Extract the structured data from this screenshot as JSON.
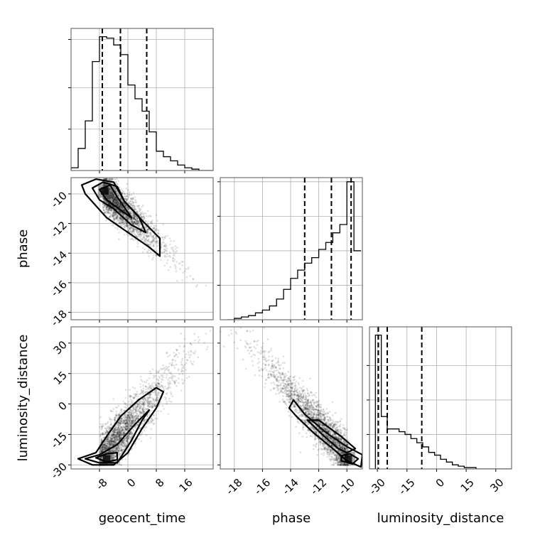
{
  "chart_data": [
    {
      "type": "histogram",
      "parameter": "geocent_time",
      "xlim": [
        -16,
        24
      ],
      "bin_edges": [
        -16,
        -14,
        -12,
        -10,
        -8,
        -6,
        -4,
        -2,
        0,
        2,
        4,
        6,
        8,
        10,
        12,
        14,
        16,
        18,
        20,
        22,
        24
      ],
      "counts": [
        0.02,
        0.16,
        0.36,
        0.79,
        0.97,
        0.96,
        0.91,
        0.84,
        0.62,
        0.52,
        0.43,
        0.28,
        0.14,
        0.1,
        0.07,
        0.04,
        0.02,
        0.01,
        0.0,
        0.0
      ],
      "quantiles": [
        -7.2,
        -2.1,
        5.3
      ]
    },
    {
      "type": "scatter-contour",
      "x_parameter": "geocent_time",
      "y_parameter": "phase",
      "xlim": [
        -16,
        24
      ],
      "ylim": [
        -18.5,
        -8.9
      ],
      "density_peak": {
        "x": -6.5,
        "y": -9.8
      },
      "levels": 3
    },
    {
      "type": "histogram",
      "parameter": "phase",
      "xlim": [
        -19,
        -8.9
      ],
      "bin_edges": [
        -18.5,
        -18,
        -17.5,
        -17,
        -16.5,
        -16,
        -15.5,
        -15,
        -14.5,
        -14,
        -13.5,
        -13,
        -12.5,
        -12,
        -11.5,
        -11,
        -10.5,
        -10,
        -9.5,
        -9
      ],
      "counts": [
        0.0,
        0.01,
        0.02,
        0.03,
        0.05,
        0.07,
        0.1,
        0.15,
        0.22,
        0.3,
        0.36,
        0.41,
        0.45,
        0.51,
        0.56,
        0.63,
        0.69,
        1.0,
        0.5
      ],
      "quantiles": [
        -13,
        -11.1,
        -9.7
      ]
    },
    {
      "type": "scatter-contour",
      "x_parameter": "geocent_time",
      "y_parameter": "luminosity_distance",
      "xlim": [
        -16,
        24
      ],
      "ylim": [
        -32,
        38
      ],
      "density_peak": {
        "x": -6,
        "y": -27
      },
      "levels": 3
    },
    {
      "type": "scatter-contour",
      "x_parameter": "phase",
      "y_parameter": "luminosity_distance",
      "xlim": [
        -19,
        -8.9
      ],
      "ylim": [
        -32,
        38
      ],
      "density_peak": {
        "x": -9.9,
        "y": -27
      },
      "levels": 3
    },
    {
      "type": "histogram",
      "parameter": "luminosity_distance",
      "xlim": [
        -34,
        38
      ],
      "bin_edges": [
        -34,
        -31,
        -28,
        -25,
        -22,
        -19,
        -16,
        -13,
        -10,
        -7,
        -4,
        -1,
        2,
        5,
        8,
        11,
        14,
        17,
        20,
        23,
        26,
        29,
        32,
        35,
        38
      ],
      "counts": [
        0.0,
        0.97,
        0.38,
        0.29,
        0.29,
        0.27,
        0.25,
        0.22,
        0.19,
        0.16,
        0.12,
        0.1,
        0.07,
        0.05,
        0.03,
        0.02,
        0.01,
        0.01,
        0.0,
        0.0,
        0.0,
        0.0,
        0.0,
        0.0
      ],
      "quantiles": [
        -29.5,
        -25,
        -7.5
      ]
    }
  ],
  "ticks": {
    "geocent_time": [
      "-8",
      "0",
      "8",
      "16"
    ],
    "phase_y": [
      "-10",
      "-12",
      "-14",
      "-16",
      "-18"
    ],
    "phase_x": [
      "-18",
      "-16",
      "-14",
      "-12",
      "-10"
    ],
    "luminosity_distance_y": [
      "30",
      "15",
      "0",
      "-15",
      "-30"
    ],
    "luminosity_distance_x": [
      "-30",
      "-15",
      "0",
      "15",
      "30"
    ]
  },
  "labels": {
    "x1": "geocent_time",
    "x2": "phase",
    "x3": "luminosity_distance",
    "y2": "phase",
    "y3": "luminosity_distance"
  }
}
